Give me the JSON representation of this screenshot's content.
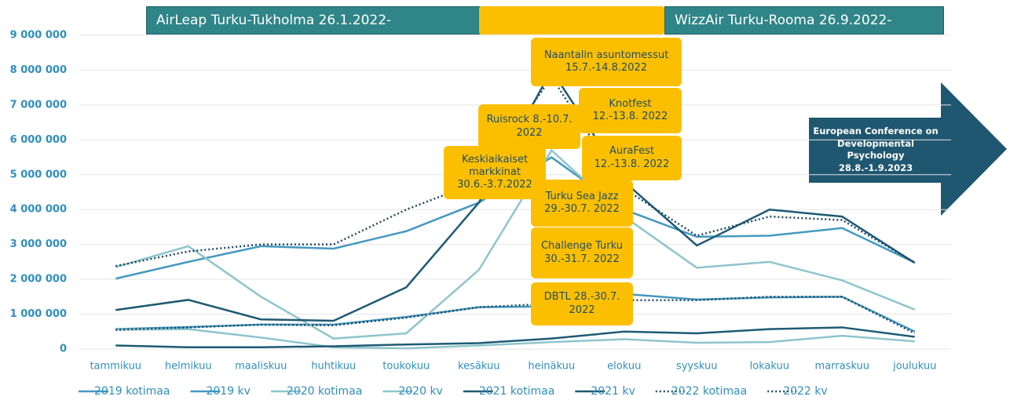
{
  "chart_data": {
    "type": "line",
    "categories": [
      "tammikuu",
      "helmikuu",
      "maaliskuu",
      "huhtikuu",
      "toukokuu",
      "kesäkuu",
      "heinäkuu",
      "elokuu",
      "syyskuu",
      "lokakuu",
      "marraskuu",
      "joulukuu"
    ],
    "series": [
      {
        "name": "2019 kotimaa",
        "color": "#4599bf",
        "dotted": false,
        "values": [
          2020000,
          2500000,
          2950000,
          2880000,
          3380000,
          4200000,
          5500000,
          4000000,
          3220000,
          3250000,
          3470000,
          2480000
        ]
      },
      {
        "name": "2019 kv",
        "color": "#4599bf",
        "dotted": false,
        "values": [
          570000,
          630000,
          700000,
          700000,
          920000,
          1200000,
          1220000,
          1580000,
          1420000,
          1480000,
          1500000,
          500000
        ]
      },
      {
        "name": "2020 kotimaa",
        "color": "#8ec5cd",
        "dotted": false,
        "values": [
          2350000,
          2950000,
          1500000,
          300000,
          450000,
          2270000,
          5700000,
          3800000,
          2330000,
          2500000,
          1970000,
          1130000
        ]
      },
      {
        "name": "2020 kv",
        "color": "#8ec5cd",
        "dotted": false,
        "values": [
          550000,
          570000,
          330000,
          50000,
          20000,
          100000,
          200000,
          280000,
          180000,
          200000,
          380000,
          220000
        ]
      },
      {
        "name": "2021 kotimaa",
        "color": "#1e5a74",
        "dotted": false,
        "values": [
          1120000,
          1410000,
          850000,
          810000,
          1770000,
          4200000,
          8000000,
          4800000,
          2970000,
          4000000,
          3800000,
          2470000
        ]
      },
      {
        "name": "2021 kv",
        "color": "#1e5a74",
        "dotted": false,
        "values": [
          100000,
          50000,
          50000,
          80000,
          130000,
          170000,
          300000,
          500000,
          450000,
          570000,
          620000,
          350000
        ]
      },
      {
        "name": "2022 kotimaa",
        "color": "#1e4a66",
        "dotted": true,
        "values": [
          2380000,
          2800000,
          3000000,
          3000000,
          4000000,
          4800000,
          7800000,
          4600000,
          3250000,
          3800000,
          3700000,
          2480000
        ]
      },
      {
        "name": "2022 kv",
        "color": "#1e4a66",
        "dotted": true,
        "values": [
          550000,
          620000,
          700000,
          680000,
          900000,
          1200000,
          1300000,
          1400000,
          1400000,
          1500000,
          1500000,
          450000
        ]
      }
    ],
    "ylim": [
      0,
      9000000
    ],
    "yticks": [
      {
        "value": 0,
        "label": "0"
      },
      {
        "value": 1000000,
        "label": "1 000 000"
      },
      {
        "value": 2000000,
        "label": "2 000 000"
      },
      {
        "value": 3000000,
        "label": "3 000 000"
      },
      {
        "value": 4000000,
        "label": "4 000 000"
      },
      {
        "value": 5000000,
        "label": "5 000 000"
      },
      {
        "value": 6000000,
        "label": "6 000 000"
      },
      {
        "value": 7000000,
        "label": "7 000 000"
      },
      {
        "value": 8000000,
        "label": "8 000 000"
      },
      {
        "value": 9000000,
        "label": "9 000 000"
      }
    ],
    "grid": true,
    "banners": [
      "AirLeap Turku-Tukholma 26.1.2022-",
      "WizzAir Turku-Rooma 26.9.2022-"
    ],
    "annotations": [
      "Naantalin asuntomessut 15.7.-14.8.2022",
      "Ruisrock 8.-10.7. 2022",
      "Knotfest 12.-13.8. 2022",
      "AuraFest 12.-13.8. 2022",
      "Keskiaikaiset markkinat 30.6.-3.7.2022",
      "Turku Sea Jazz 29.-30.7. 2022",
      "Challenge Turku 30.-31.7. 2022",
      "DBTL 28.-30.7. 2022"
    ],
    "arrow_note": "European Conference on Developmental Psychology 28.8.-1.9.2023"
  }
}
